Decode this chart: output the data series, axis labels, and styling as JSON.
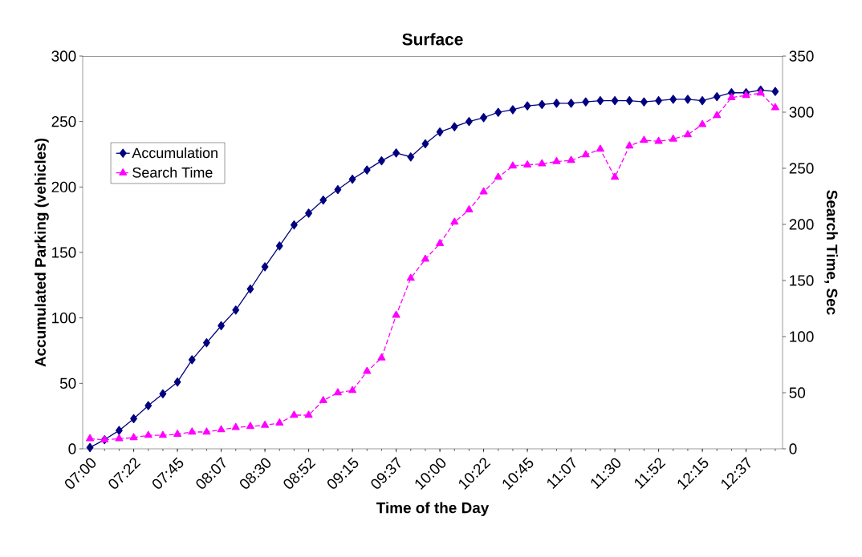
{
  "chart_data": {
    "type": "line",
    "title": "Surface",
    "xlabel": "Time of the Day",
    "ylabel": "Accumulated Parking (vehicles)",
    "y2label": "Search Time, Sec",
    "categories": [
      "07:00",
      null,
      null,
      "07:22",
      null,
      null,
      "07:45",
      null,
      null,
      "08:07",
      null,
      null,
      "08:30",
      null,
      null,
      "08:52",
      null,
      null,
      "09:15",
      null,
      null,
      "09:37",
      null,
      null,
      "10:00",
      null,
      null,
      "10:22",
      null,
      null,
      "10:45",
      null,
      null,
      "11:07",
      null,
      null,
      "11:30",
      null,
      null,
      "11:52",
      null,
      null,
      "12:15",
      null,
      null,
      "12:37",
      null,
      null
    ],
    "series": [
      {
        "name": "Accumulation",
        "color": "#000080",
        "marker": "diamond",
        "line_style": "solid",
        "values": [
          1,
          7,
          14,
          23,
          33,
          42,
          51,
          68,
          81,
          94,
          106,
          122,
          139,
          155,
          171,
          180,
          190,
          198,
          206,
          213,
          220,
          226,
          223,
          233,
          242,
          246,
          250,
          253,
          257,
          259,
          262,
          263,
          264,
          264,
          265,
          266,
          266,
          266,
          265,
          266,
          267,
          267,
          266,
          269,
          272,
          272,
          274,
          273
        ]
      },
      {
        "name": "Search Time",
        "color": "#ff00ff",
        "marker": "triangle",
        "line_style": "dashed",
        "axis": "y2",
        "values": [
          9,
          8,
          9,
          10,
          12,
          12,
          13,
          15,
          15,
          17,
          19,
          20,
          21,
          23,
          30,
          30,
          43,
          50,
          52,
          69,
          81,
          119,
          152,
          169,
          183,
          202,
          213,
          229,
          242,
          252,
          253,
          254,
          256,
          257,
          262,
          267,
          242,
          270,
          275,
          274,
          276,
          280,
          289,
          297,
          313,
          315,
          317,
          304
        ]
      }
    ],
    "ylim": [
      0,
      300
    ],
    "yticks": [
      0,
      50,
      100,
      150,
      200,
      250,
      300
    ],
    "y2lim": [
      0,
      350
    ],
    "y2ticks": [
      0,
      50,
      100,
      150,
      200,
      250,
      300,
      350
    ],
    "grid": false,
    "legend": "top left"
  }
}
